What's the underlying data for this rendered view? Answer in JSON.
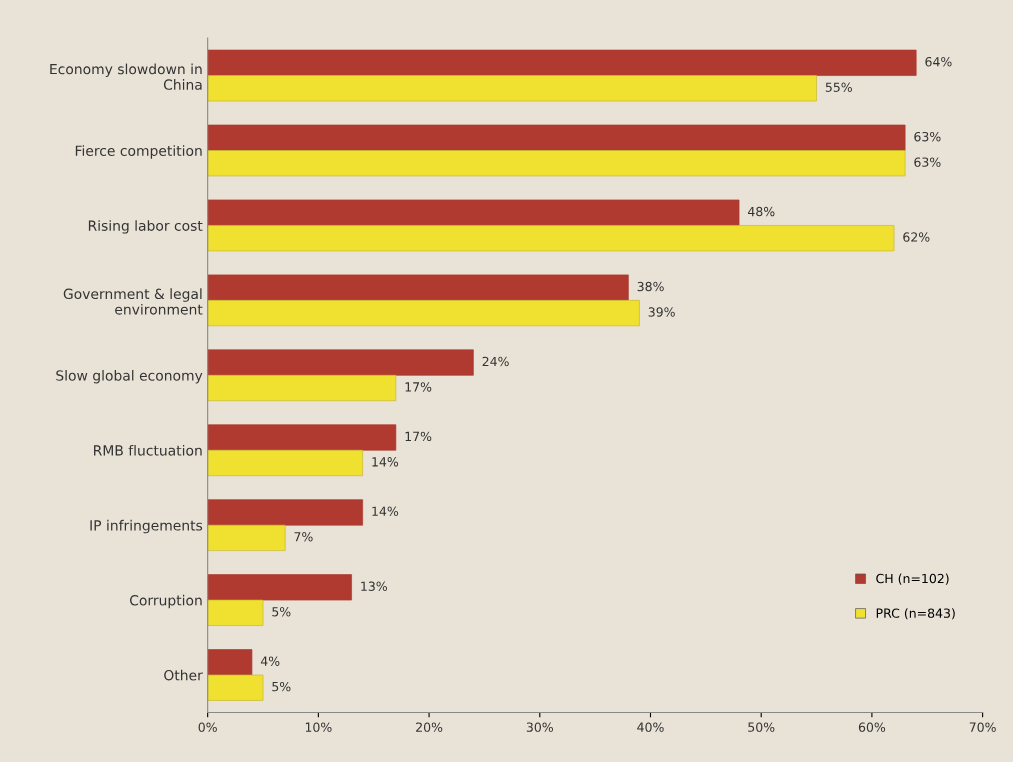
{
  "chart_data": {
    "type": "bar",
    "orientation": "horizontal",
    "categories": [
      "Economy slowdown in\nChina",
      "Fierce competition",
      "Rising labor cost",
      "Government & legal\nenvironment",
      "Slow global economy",
      "RMB fluctuation",
      "IP infringements",
      "Corruption",
      "Other"
    ],
    "series": [
      {
        "name": "CH (n=102)",
        "color": "#b03a30",
        "values": [
          64,
          63,
          48,
          38,
          24,
          17,
          14,
          13,
          4
        ],
        "value_labels": [
          "64%",
          "63%",
          "48%",
          "38%",
          "24%",
          "17%",
          "14%",
          "13%",
          "4%"
        ]
      },
      {
        "name": "PRC (n=843)",
        "color": "#f0e030",
        "values": [
          55,
          63,
          62,
          39,
          17,
          14,
          7,
          5,
          5
        ],
        "value_labels": [
          "55%",
          "63%",
          "62%",
          "39%",
          "17%",
          "14%",
          "7%",
          "5%",
          "5%"
        ]
      }
    ],
    "xlim": [
      0,
      70
    ],
    "xticks": [
      {
        "value": 0,
        "label": "0%"
      },
      {
        "value": 10,
        "label": "10%"
      },
      {
        "value": 20,
        "label": "20%"
      },
      {
        "value": 30,
        "label": "30%"
      },
      {
        "value": 40,
        "label": "40%"
      },
      {
        "value": 50,
        "label": "50%"
      },
      {
        "value": 60,
        "label": "60%"
      },
      {
        "value": 70,
        "label": "70%"
      }
    ],
    "grid": false,
    "legend": "bottom right"
  }
}
